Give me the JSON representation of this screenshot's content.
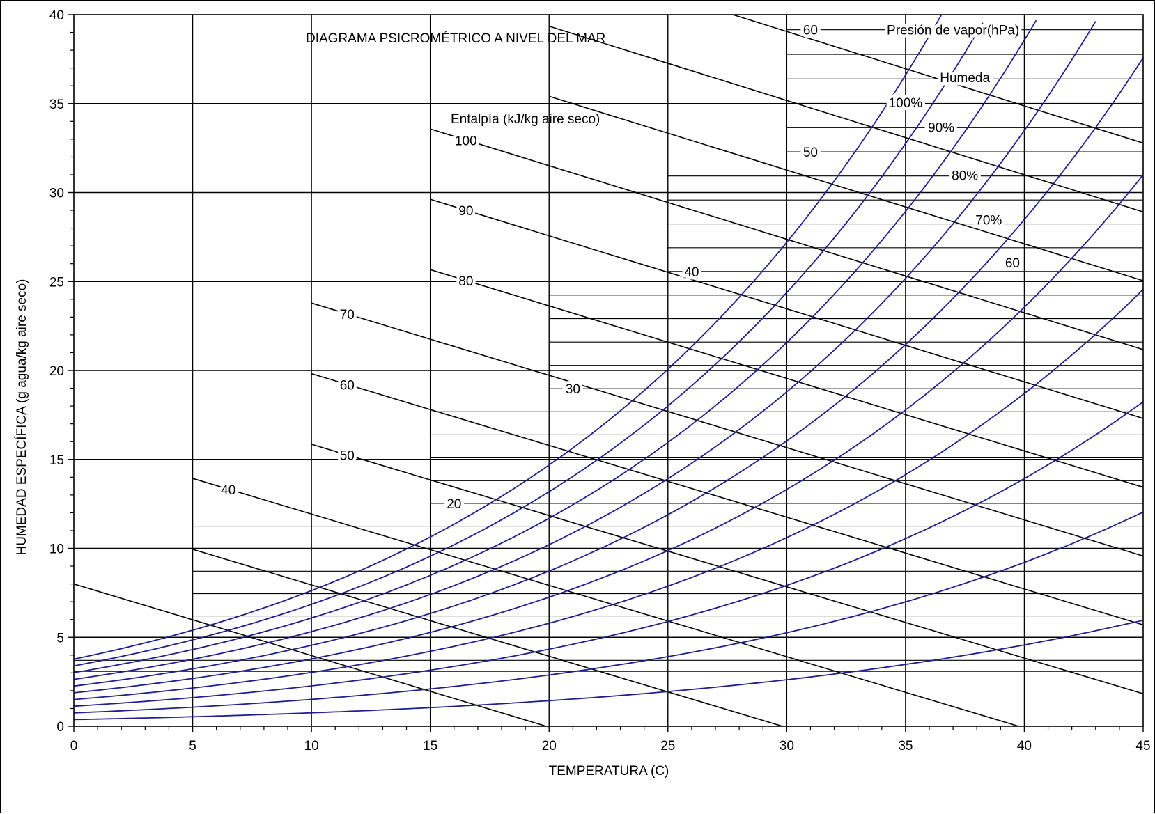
{
  "chart_data": {
    "type": "line",
    "title": "DIAGRAMA PSICROMÉTRICO A  NIVEL DEL MAR",
    "xlabel": "TEMPERATURA (C)",
    "ylabel": "HUMEDAD ESPECÍFICA (g agua/kg aire seco)",
    "xlim": [
      0,
      45
    ],
    "ylim": [
      0,
      40
    ],
    "x_ticks": [
      "0",
      "5",
      "10",
      "15",
      "20",
      "25",
      "30",
      "35",
      "40",
      "45"
    ],
    "y_ticks": [
      "0",
      "5",
      "10",
      "15",
      "20",
      "25",
      "30",
      "35",
      "40"
    ],
    "grid": true,
    "colors": {
      "humidity": "#1f1f8f",
      "lines": "#000000",
      "background": "#ffffff"
    },
    "relative_humidity": {
      "legend_label": "Humeda",
      "levels": [
        {
          "label": "100%",
          "rh": 100,
          "show_label": true
        },
        {
          "label": "90%",
          "rh": 90,
          "show_label": true
        },
        {
          "label": "80%",
          "rh": 80,
          "show_label": true
        },
        {
          "label": "70%",
          "rh": 70,
          "show_label": true
        },
        {
          "label": "60",
          "rh": 60,
          "show_label": true
        },
        {
          "label": "",
          "rh": 50,
          "show_label": false
        },
        {
          "label": "",
          "rh": 40,
          "show_label": false
        },
        {
          "label": "",
          "rh": 30,
          "show_label": false
        },
        {
          "label": "",
          "rh": 20,
          "show_label": false
        },
        {
          "label": "",
          "rh": 10,
          "show_label": false
        }
      ]
    },
    "enthalpy": {
      "legend_label": "Entalpía (kJ/kg aire seco)",
      "lines": [
        {
          "h": 20,
          "label": "",
          "start_t": 0
        },
        {
          "h": 30,
          "label": "",
          "start_t": 5
        },
        {
          "h": 40,
          "label": "40",
          "start_t": 5
        },
        {
          "h": 50,
          "label": "50",
          "start_t": 10
        },
        {
          "h": 60,
          "label": "60",
          "start_t": 10
        },
        {
          "h": 70,
          "label": "70",
          "start_t": 10
        },
        {
          "h": 80,
          "label": "80",
          "start_t": 15
        },
        {
          "h": 90,
          "label": "90",
          "start_t": 15
        },
        {
          "h": 100,
          "label": "100",
          "start_t": 15
        },
        {
          "h": 110,
          "label": "",
          "start_t": 20
        },
        {
          "h": 120,
          "label": "",
          "start_t": 20
        },
        {
          "h": 130,
          "label": "",
          "start_t": 25
        }
      ]
    },
    "vapor_pressure": {
      "legend_label": "Presión de vapor(hPa)",
      "bands": [
        {
          "from_t": 0,
          "to_t": 45,
          "pressures": [
            5,
            6
          ]
        },
        {
          "from_t": 5,
          "to_t": 45,
          "pressures": [
            10,
            12,
            14,
            16,
            18
          ]
        },
        {
          "from_t": 15,
          "to_t": 45,
          "pressures": [
            20,
            22,
            24,
            26,
            28
          ]
        },
        {
          "from_t": 20,
          "to_t": 45,
          "pressures": [
            30,
            32,
            34,
            36,
            38
          ]
        },
        {
          "from_t": 25,
          "to_t": 45,
          "pressures": [
            40,
            42,
            44,
            46,
            48
          ]
        },
        {
          "from_t": 30,
          "to_t": 45,
          "pressures": [
            50,
            52,
            54,
            56,
            58,
            60,
            62
          ]
        }
      ],
      "labels": [
        {
          "text": "20",
          "t": 16,
          "p": 20
        },
        {
          "text": "30",
          "t": 21,
          "p": 30
        },
        {
          "text": "40",
          "t": 26,
          "p": 40
        },
        {
          "text": "50",
          "t": 31,
          "p": 50
        },
        {
          "text": "60",
          "t": 31,
          "p": 60
        },
        {
          "text": "Presión de vapor(hPa)",
          "t": 37,
          "p": 60
        }
      ]
    }
  }
}
